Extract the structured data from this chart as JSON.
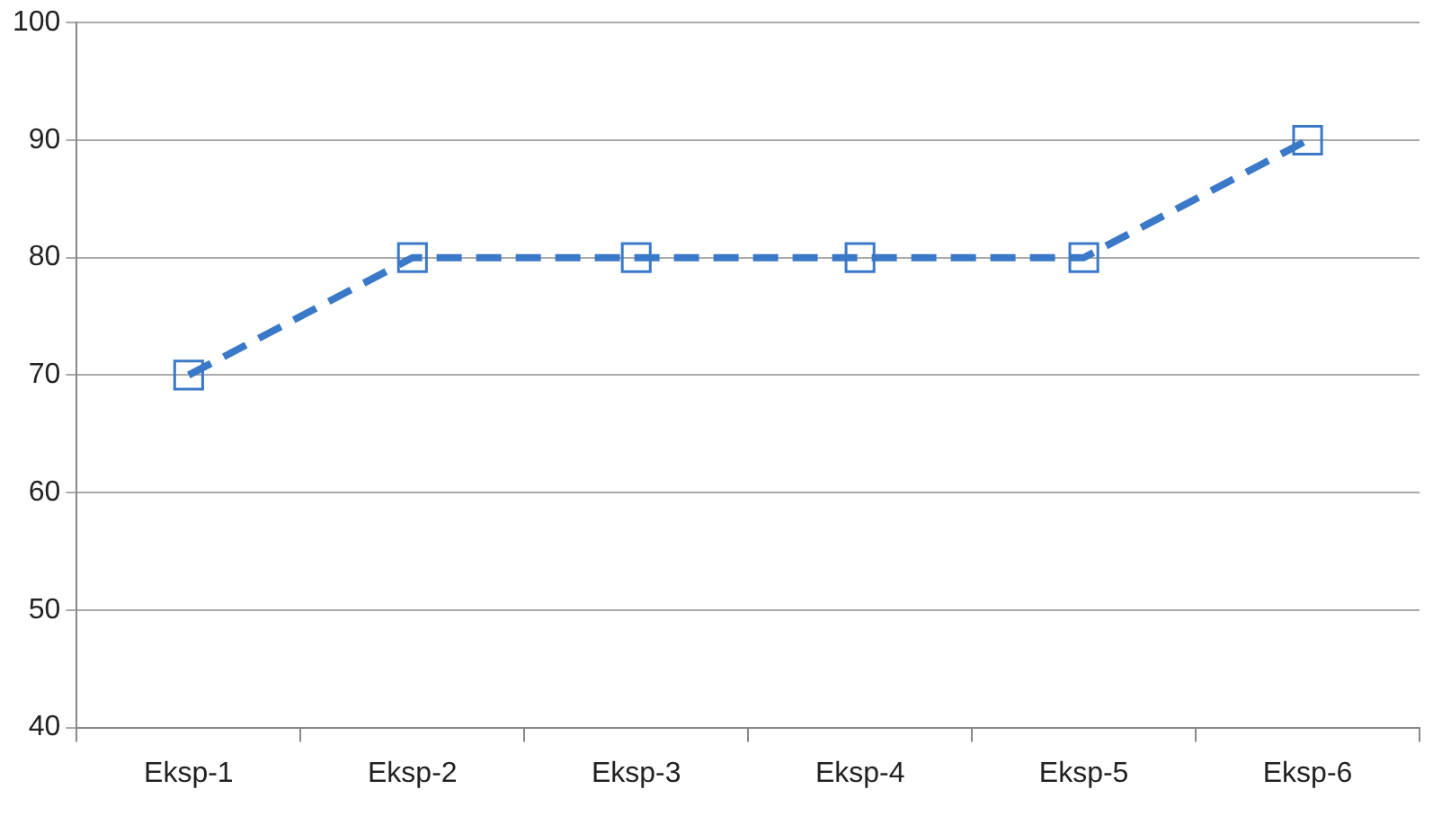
{
  "chart_data": {
    "type": "line",
    "categories": [
      "Eksp-1",
      "Eksp-2",
      "Eksp-3",
      "Eksp-4",
      "Eksp-5",
      "Eksp-6"
    ],
    "series": [
      {
        "color": "#3a78c8",
        "values": [
          70,
          80,
          80,
          80,
          80,
          90
        ]
      }
    ],
    "ylim": [
      40,
      100
    ],
    "yticks": [
      40,
      50,
      60,
      70,
      80,
      90,
      100
    ],
    "grid": "y",
    "marker": "square",
    "line_style": "dashed",
    "legend": false
  }
}
